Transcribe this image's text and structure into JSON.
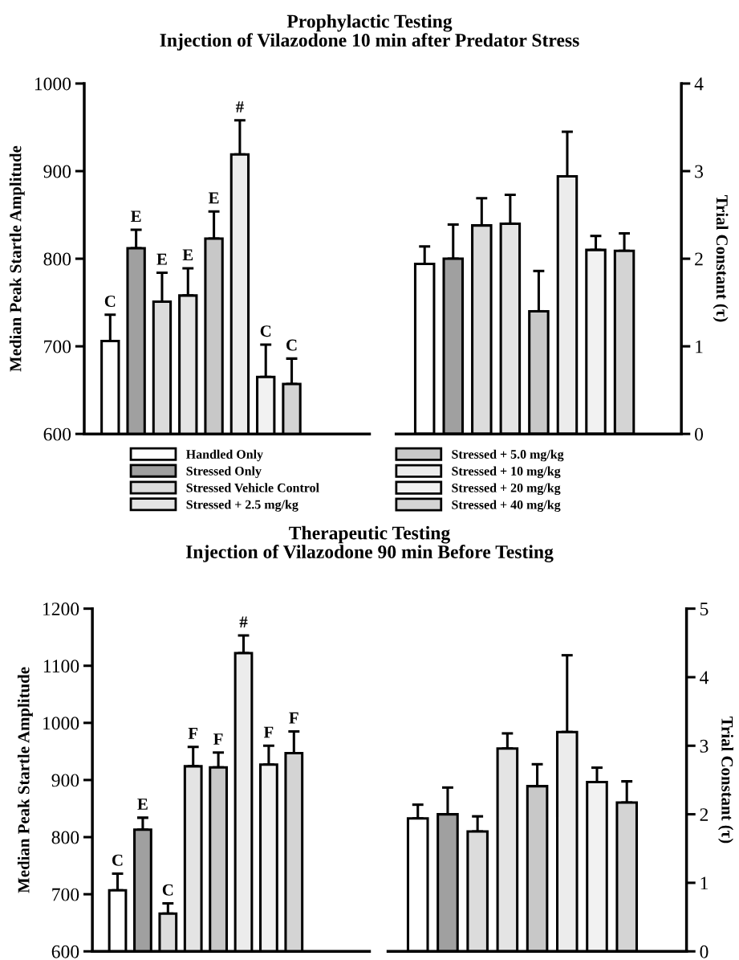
{
  "chart_data": [
    {
      "type": "bar",
      "title": "Prophylactic Testing\nInjection of Vilazodone 10 min after Predator Stress",
      "ylabel": "Median Peak Startle Amplitude",
      "ylim": [
        600,
        1000
      ],
      "yticks": [
        600,
        700,
        800,
        900,
        1000
      ],
      "legend": "bottom",
      "grid": false,
      "categories": [
        null
      ],
      "series": [
        {
          "name": "Handled Only",
          "color": "#ffffff",
          "values": [
            706
          ],
          "errors": [
            [
              706,
              736
            ]
          ],
          "value_labels": [
            "C"
          ]
        },
        {
          "name": "Stressed Only",
          "color": "#a0a0a0",
          "values": [
            812
          ],
          "errors": [
            [
              812,
              833
            ]
          ],
          "value_labels": [
            "E"
          ]
        },
        {
          "name": "Stressed Vehicle Control",
          "color": "#dcdcdc",
          "values": [
            751
          ],
          "errors": [
            [
              751,
              784
            ]
          ],
          "value_labels": [
            "E"
          ]
        },
        {
          "name": "Stressed + 2.5 mg/kg",
          "color": "#e4e4e4",
          "values": [
            758
          ],
          "errors": [
            [
              758,
              789
            ]
          ],
          "value_labels": [
            "E"
          ]
        },
        {
          "name": "Stressed + 5.0 mg/kg",
          "color": "#c8c8c8",
          "values": [
            823
          ],
          "errors": [
            [
              823,
              854
            ]
          ],
          "value_labels": [
            "E"
          ]
        },
        {
          "name": "Stressed + 10 mg/kg",
          "color": "#ececec",
          "values": [
            919
          ],
          "errors": [
            [
              919,
              958
            ]
          ],
          "value_labels": [
            "#"
          ]
        },
        {
          "name": "Stressed + 20 mg/kg",
          "color": "#f2f2f2",
          "values": [
            665
          ],
          "errors": [
            [
              665,
              702
            ]
          ],
          "value_labels": [
            "C"
          ]
        },
        {
          "name": "Stressed + 40 mg/kg",
          "color": "#d4d4d4",
          "values": [
            657
          ],
          "errors": [
            [
              657,
              686
            ]
          ],
          "value_labels": [
            "C"
          ]
        }
      ]
    },
    {
      "type": "bar",
      "ylabel": "Trial Constant (τ)",
      "ylim": [
        0,
        4
      ],
      "yticks": [
        0,
        1,
        2,
        3,
        4
      ],
      "grid": false,
      "categories": [
        null,
        null,
        null,
        null,
        null,
        null,
        null,
        null
      ],
      "series": [
        {
          "colors": [
            "#ffffff",
            "#a0a0a0",
            "#dcdcdc",
            "#e4e4e4",
            "#c8c8c8",
            "#ececec",
            "#f2f2f2",
            "#d4d4d4"
          ],
          "values": [
            1.94,
            2.0,
            2.38,
            2.4,
            1.4,
            2.94,
            2.1,
            2.09
          ],
          "errors": [
            [
              1.94,
              2.14
            ],
            [
              2.0,
              2.39
            ],
            [
              2.38,
              2.69
            ],
            [
              2.4,
              2.73
            ],
            [
              1.4,
              1.86
            ],
            [
              2.94,
              3.45
            ],
            [
              2.1,
              2.26
            ],
            [
              2.09,
              2.29
            ]
          ]
        }
      ]
    },
    {
      "type": "bar",
      "title": "Therapeutic Testing\nInjection of Vilazodone 90 min Before Testing",
      "ylabel": "Median Peak Startle Amplitude",
      "ylim": [
        600,
        1200
      ],
      "yticks": [
        600,
        700,
        800,
        900,
        1000,
        1100,
        1200
      ],
      "grid": false,
      "categories": [
        null
      ],
      "series": [
        {
          "color": "#ffffff",
          "values": [
            707
          ],
          "errors": [
            [
              707,
              736
            ]
          ],
          "value_labels": [
            "C"
          ]
        },
        {
          "color": "#a0a0a0",
          "values": [
            813
          ],
          "errors": [
            [
              813,
              834
            ]
          ],
          "value_labels": [
            "E"
          ]
        },
        {
          "color": "#dcdcdc",
          "values": [
            666
          ],
          "errors": [
            [
              666,
              684
            ]
          ],
          "value_labels": [
            "C"
          ]
        },
        {
          "color": "#e4e4e4",
          "values": [
            924
          ],
          "errors": [
            [
              924,
              958
            ]
          ],
          "value_labels": [
            "F"
          ]
        },
        {
          "color": "#c8c8c8",
          "values": [
            922
          ],
          "errors": [
            [
              922,
              948
            ]
          ],
          "value_labels": [
            "F"
          ]
        },
        {
          "color": "#ececec",
          "values": [
            1122
          ],
          "errors": [
            [
              1122,
              1153
            ]
          ],
          "value_labels": [
            "#"
          ]
        },
        {
          "color": "#f2f2f2",
          "values": [
            927
          ],
          "errors": [
            [
              927,
              960
            ]
          ],
          "value_labels": [
            "F"
          ]
        },
        {
          "color": "#d4d4d4",
          "values": [
            947
          ],
          "errors": [
            [
              947,
              985
            ]
          ],
          "value_labels": [
            "F"
          ]
        }
      ]
    },
    {
      "type": "bar",
      "ylabel": "Trial Constant (τ)",
      "ylim": [
        0,
        5
      ],
      "yticks": [
        0,
        1,
        2,
        3,
        4,
        5
      ],
      "grid": false,
      "categories": [
        null,
        null,
        null,
        null,
        null,
        null,
        null,
        null
      ],
      "series": [
        {
          "colors": [
            "#ffffff",
            "#a0a0a0",
            "#dcdcdc",
            "#e4e4e4",
            "#c8c8c8",
            "#ececec",
            "#f2f2f2",
            "#d4d4d4"
          ],
          "values": [
            1.94,
            2.0,
            1.75,
            2.96,
            2.41,
            3.2,
            2.47,
            2.17
          ],
          "errors": [
            [
              1.94,
              2.14
            ],
            [
              2.0,
              2.39
            ],
            [
              1.75,
              1.97
            ],
            [
              2.96,
              3.18
            ],
            [
              2.41,
              2.73
            ],
            [
              3.2,
              4.32
            ],
            [
              2.47,
              2.68
            ],
            [
              2.17,
              2.48
            ]
          ]
        }
      ]
    }
  ]
}
